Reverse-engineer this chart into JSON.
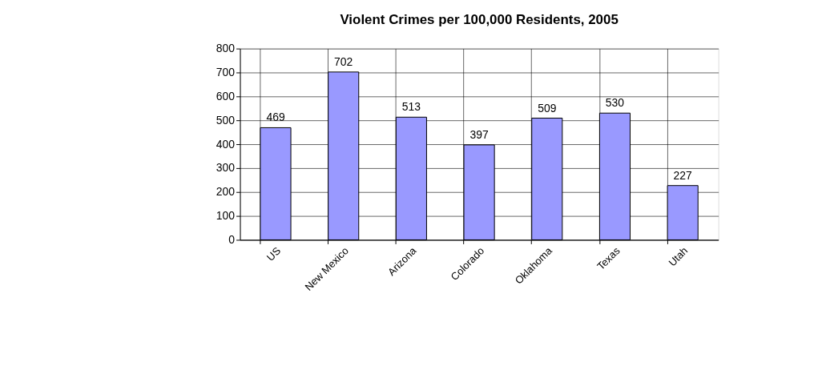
{
  "chart_data": {
    "type": "bar",
    "title": "Violent Crimes per 100,000 Residents, 2005",
    "categories": [
      "US",
      "New Mexico",
      "Arizona",
      "Colorado",
      "Oklahoma",
      "Texas",
      "Utah"
    ],
    "values": [
      469,
      702,
      513,
      397,
      509,
      530,
      227
    ],
    "color": "#9999ff",
    "ylim": [
      0,
      800
    ],
    "yticks": [
      0,
      100,
      200,
      300,
      400,
      500,
      600,
      700,
      800
    ],
    "grid": true,
    "data_labels": true
  }
}
